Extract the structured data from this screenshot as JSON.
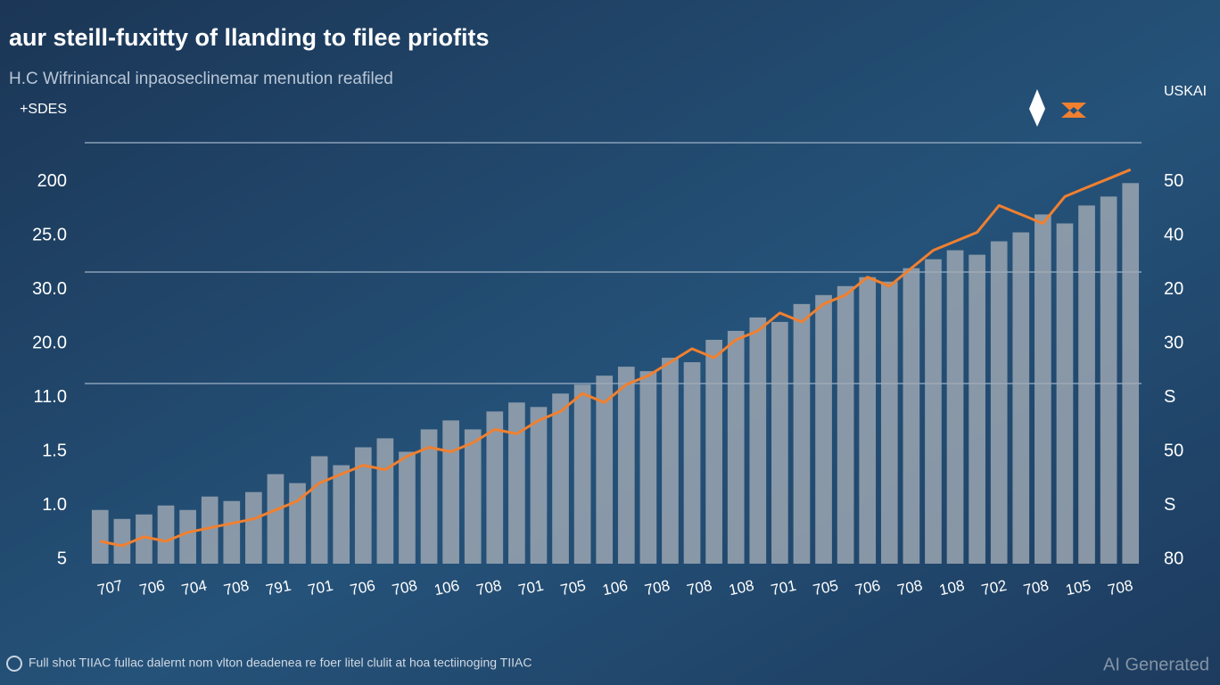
{
  "chart_data": {
    "type": "bar",
    "title": "aur steill-fuxitty of llanding to filee priofits",
    "subtitle": "H.C Wifriniancal inpaoseclinemar menution reafiled",
    "y_labels": [
      "5",
      "1.0",
      "1.5",
      "11.0",
      "20.0",
      "30.0",
      "25.0",
      "200",
      "+SDES"
    ],
    "y2_labels": [
      "80",
      "S",
      "50",
      "S",
      "30",
      "20",
      "40",
      "50",
      "USKAI"
    ],
    "x_labels": [
      "707",
      "706",
      "704",
      "708",
      "791",
      "701",
      "706",
      "708",
      "106",
      "708",
      "701",
      "705",
      "106",
      "708",
      "708",
      "108",
      "701",
      "705",
      "706",
      "708",
      "108",
      "702",
      "708",
      "105",
      "708"
    ],
    "ylim": [
      0,
      100
    ],
    "series": [
      {
        "kind": "bar",
        "color": "#a3abb5",
        "values": [
          12,
          10,
          11,
          13,
          12,
          15,
          14,
          16,
          20,
          18,
          24,
          22,
          26,
          28,
          25,
          30,
          32,
          30,
          34,
          36,
          35,
          38,
          40,
          42,
          44,
          43,
          46,
          45,
          50,
          52,
          55,
          54,
          58,
          60,
          62,
          64,
          63,
          66,
          68,
          70,
          69,
          72,
          74,
          78,
          76,
          80,
          82,
          85
        ]
      },
      {
        "kind": "line",
        "color": "#f08030",
        "values": [
          5,
          4,
          6,
          5,
          7,
          8,
          9,
          10,
          12,
          14,
          18,
          20,
          22,
          21,
          24,
          26,
          25,
          27,
          30,
          29,
          32,
          34,
          38,
          36,
          40,
          42,
          45,
          48,
          46,
          50,
          52,
          56,
          54,
          58,
          60,
          64,
          62,
          66,
          70,
          72,
          74,
          80,
          78,
          76,
          82,
          84,
          86,
          88
        ]
      }
    ],
    "footer": "Full shot TIIAC fullac dalernt nom vlton deadenea re foer litel clulit at hoa tectiinoging TIIAC",
    "watermark": "AI Generated"
  }
}
